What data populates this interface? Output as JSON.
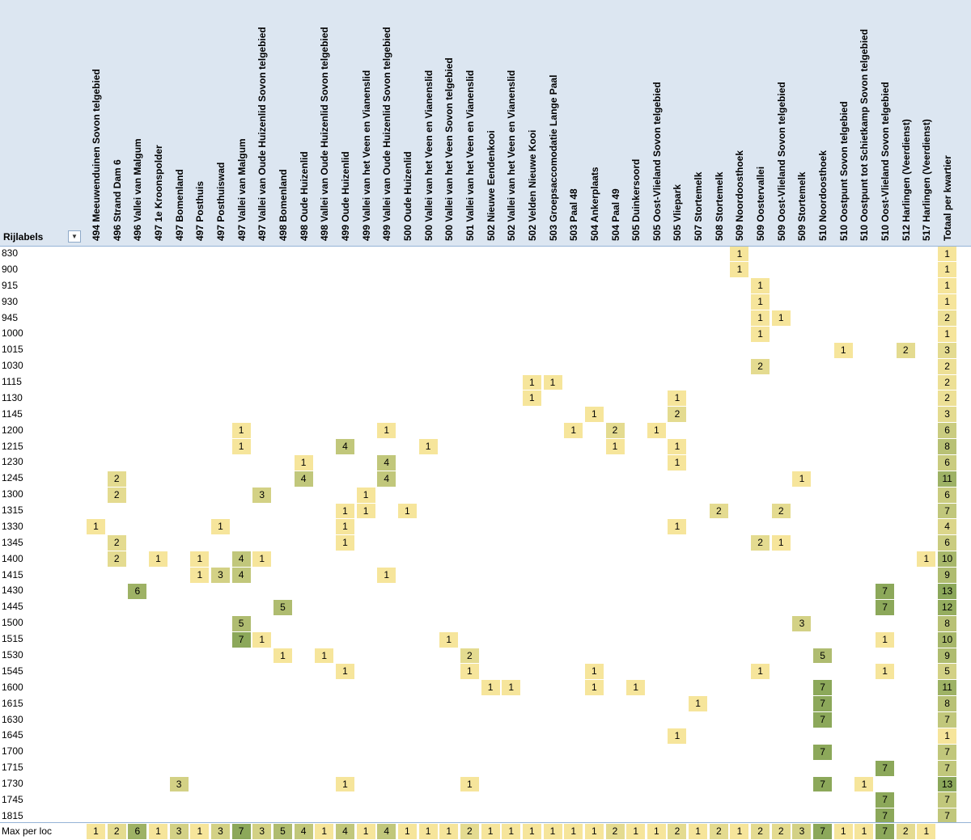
{
  "pivot": {
    "row_field_label": "Rijlabels",
    "filter_icon": "dropdown-filter-icon",
    "colors": {
      "header_bg": "#dce6f1",
      "low": "#f6e59b",
      "high": "#8ca85a"
    },
    "columns": [
      "494 Meeuwenduinen Sovon telgebied",
      "496 Strand Dam 6",
      "496 Vallei van Malgum",
      "497 1e Kroonspolder",
      "497 Bomenland",
      "497 Posthuis",
      "497 Posthuiswad",
      "497 Vallei van Malgum",
      "497 Vallei van Oude Huizenlid Sovon telgebied",
      "498 Bomenland",
      "498 Oude Huizenlid",
      "498 Vallei van Oude Huizenlid Sovon telgebied",
      "499 Oude Huizenlid",
      "499 Vallei van het Veen en Vianenslid",
      "499 Vallei van Oude Huizenlid Sovon telgebied",
      "500 Oude Huizenlid",
      "500 Vallei van het Veen en Vianenslid",
      "500 Vallei van het Veen Sovon telgebied",
      "501 Vallei van het Veen en Vianenslid",
      "502 Nieuwe Eendenkooi",
      "502 Vallei van het Veen en Vianenslid",
      "502 Velden Nieuwe Kooi",
      "503 Groepsaccomodatie Lange Paal",
      "503 Paal 48",
      "504 Ankerplaats",
      "504 Paal 49",
      "505 Duinkersoord",
      "505 Oost-Vlieland Sovon telgebied",
      "505 Vliepark",
      "507 Stortemelk",
      "508 Stortemelk",
      "509 Noordoosthoek",
      "509 Oostervallei",
      "509 Oost-Vlieland Sovon telgebied",
      "509 Stortemelk",
      "510 Noordoosthoek",
      "510 Oostpunt Sovon telgebied",
      "510 Oostpunt tot Schietkamp Sovon telgebied",
      "510 Oost-Vlieland Sovon telgebied",
      "512 Harlingen (Veerdienst)",
      "517 Harlingen (Veerdienst)",
      "Totaal per kwartier"
    ],
    "rows": [
      {
        "label": "830",
        "cells": [
          [
            31,
            1
          ]
        ],
        "total": 1
      },
      {
        "label": "900",
        "cells": [
          [
            31,
            1
          ]
        ],
        "total": 1
      },
      {
        "label": "915",
        "cells": [
          [
            32,
            1
          ]
        ],
        "total": 1
      },
      {
        "label": "930",
        "cells": [
          [
            32,
            1
          ]
        ],
        "total": 1
      },
      {
        "label": "945",
        "cells": [
          [
            32,
            1
          ],
          [
            33,
            1
          ]
        ],
        "total": 2
      },
      {
        "label": "1000",
        "cells": [
          [
            32,
            1
          ]
        ],
        "total": 1
      },
      {
        "label": "1015",
        "cells": [
          [
            36,
            1
          ],
          [
            39,
            2
          ]
        ],
        "total": 3
      },
      {
        "label": "1030",
        "cells": [
          [
            32,
            2
          ]
        ],
        "total": 2
      },
      {
        "label": "1115",
        "cells": [
          [
            21,
            1
          ],
          [
            22,
            1
          ]
        ],
        "total": 2
      },
      {
        "label": "1130",
        "cells": [
          [
            21,
            1
          ],
          [
            28,
            1
          ]
        ],
        "total": 2
      },
      {
        "label": "1145",
        "cells": [
          [
            24,
            1
          ],
          [
            28,
            2
          ]
        ],
        "total": 3
      },
      {
        "label": "1200",
        "cells": [
          [
            7,
            1
          ],
          [
            14,
            1
          ],
          [
            23,
            1
          ],
          [
            25,
            2
          ],
          [
            27,
            1
          ]
        ],
        "total": 6
      },
      {
        "label": "1215",
        "cells": [
          [
            7,
            1
          ],
          [
            12,
            4
          ],
          [
            16,
            1
          ],
          [
            25,
            1
          ],
          [
            28,
            1
          ]
        ],
        "total": 8
      },
      {
        "label": "1230",
        "cells": [
          [
            10,
            1
          ],
          [
            14,
            4
          ],
          [
            28,
            1
          ]
        ],
        "total": 6
      },
      {
        "label": "1245",
        "cells": [
          [
            1,
            2
          ],
          [
            10,
            4
          ],
          [
            14,
            4
          ],
          [
            34,
            1
          ]
        ],
        "total": 11
      },
      {
        "label": "1300",
        "cells": [
          [
            1,
            2
          ],
          [
            8,
            3
          ],
          [
            13,
            1
          ]
        ],
        "total": 6
      },
      {
        "label": "1315",
        "cells": [
          [
            12,
            1
          ],
          [
            13,
            1
          ],
          [
            15,
            1
          ],
          [
            30,
            2
          ],
          [
            33,
            2
          ]
        ],
        "total": 7
      },
      {
        "label": "1330",
        "cells": [
          [
            0,
            1
          ],
          [
            6,
            1
          ],
          [
            12,
            1
          ],
          [
            28,
            1
          ]
        ],
        "total": 4
      },
      {
        "label": "1345",
        "cells": [
          [
            1,
            2
          ],
          [
            12,
            1
          ],
          [
            32,
            2
          ],
          [
            33,
            1
          ]
        ],
        "total": 6
      },
      {
        "label": "1400",
        "cells": [
          [
            1,
            2
          ],
          [
            3,
            1
          ],
          [
            5,
            1
          ],
          [
            7,
            4
          ],
          [
            8,
            1
          ],
          [
            40,
            1
          ]
        ],
        "total": 10
      },
      {
        "label": "1415",
        "cells": [
          [
            5,
            1
          ],
          [
            6,
            3
          ],
          [
            7,
            4
          ],
          [
            14,
            1
          ]
        ],
        "total": 9
      },
      {
        "label": "1430",
        "cells": [
          [
            2,
            6
          ],
          [
            38,
            7
          ]
        ],
        "total": 13
      },
      {
        "label": "1445",
        "cells": [
          [
            9,
            5
          ],
          [
            38,
            7
          ]
        ],
        "total": 12
      },
      {
        "label": "1500",
        "cells": [
          [
            7,
            5
          ],
          [
            34,
            3
          ]
        ],
        "total": 8
      },
      {
        "label": "1515",
        "cells": [
          [
            7,
            7
          ],
          [
            8,
            1
          ],
          [
            17,
            1
          ],
          [
            38,
            1
          ]
        ],
        "total": 10
      },
      {
        "label": "1530",
        "cells": [
          [
            9,
            1
          ],
          [
            11,
            1
          ],
          [
            18,
            2
          ],
          [
            35,
            5
          ]
        ],
        "total": 9
      },
      {
        "label": "1545",
        "cells": [
          [
            12,
            1
          ],
          [
            18,
            1
          ],
          [
            24,
            1
          ],
          [
            32,
            1
          ],
          [
            38,
            1
          ]
        ],
        "total": 5
      },
      {
        "label": "1600",
        "cells": [
          [
            19,
            1
          ],
          [
            20,
            1
          ],
          [
            24,
            1
          ],
          [
            26,
            1
          ],
          [
            35,
            7
          ]
        ],
        "total": 11
      },
      {
        "label": "1615",
        "cells": [
          [
            29,
            1
          ],
          [
            35,
            7
          ]
        ],
        "total": 8
      },
      {
        "label": "1630",
        "cells": [
          [
            35,
            7
          ]
        ],
        "total": 7
      },
      {
        "label": "1645",
        "cells": [
          [
            28,
            1
          ]
        ],
        "total": 1
      },
      {
        "label": "1700",
        "cells": [
          [
            35,
            7
          ]
        ],
        "total": 7
      },
      {
        "label": "1715",
        "cells": [
          [
            38,
            7
          ]
        ],
        "total": 7
      },
      {
        "label": "1730",
        "cells": [
          [
            4,
            3
          ],
          [
            12,
            1
          ],
          [
            18,
            1
          ],
          [
            35,
            7
          ],
          [
            37,
            1
          ]
        ],
        "total": 13
      },
      {
        "label": "1745",
        "cells": [
          [
            38,
            7
          ]
        ],
        "total": 7
      },
      {
        "label": "1815",
        "cells": [
          [
            38,
            7
          ]
        ],
        "total": 7
      }
    ],
    "max_row": {
      "label": "Max  per loc",
      "values": [
        1,
        2,
        6,
        1,
        3,
        1,
        3,
        7,
        3,
        5,
        4,
        1,
        4,
        1,
        4,
        1,
        1,
        1,
        2,
        1,
        1,
        1,
        1,
        1,
        1,
        2,
        1,
        1,
        2,
        1,
        2,
        1,
        2,
        2,
        3,
        7,
        1,
        1,
        7,
        2,
        1
      ]
    }
  }
}
